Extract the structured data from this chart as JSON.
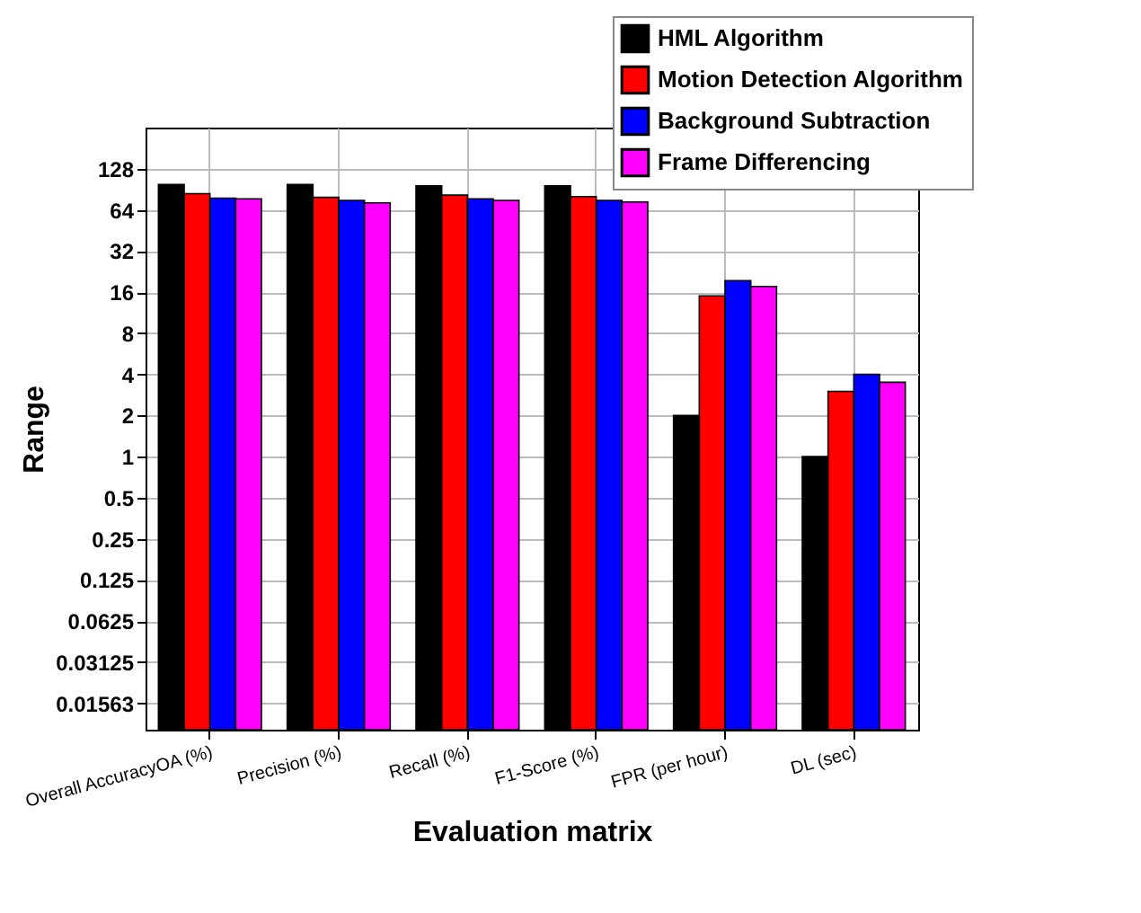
{
  "chart_data": {
    "type": "bar",
    "xlabel": "Evaluation matrix",
    "ylabel": "Range",
    "categories": [
      "Overall AccuracyOA (%)",
      "Precision (%)",
      "Recall (%)",
      "F1-Score (%)",
      "FPR (per hour)",
      "DL (sec)"
    ],
    "series": [
      {
        "name": "HML Algorithm",
        "color": "#000000",
        "values": [
          98,
          98,
          96,
          96,
          2,
          1
        ]
      },
      {
        "name": "Motion Detection Algorithm",
        "color": "#ff0000",
        "values": [
          84,
          79,
          82,
          80,
          15,
          3
        ]
      },
      {
        "name": "Background Subtraction",
        "color": "#0000ff",
        "values": [
          78,
          75,
          77,
          75,
          19.4,
          4
        ]
      },
      {
        "name": "Frame Differencing",
        "color": "#ff00ff",
        "values": [
          77,
          72,
          75,
          73,
          17.6,
          3.5
        ]
      }
    ],
    "log": true,
    "ylim": [
      0.01,
      256
    ],
    "yticks": [
      {
        "value": 0.015625,
        "label": "0.01563"
      },
      0.03125,
      0.0625,
      0.125,
      0.25,
      0.5,
      1,
      2,
      4,
      8,
      16,
      32,
      64,
      128
    ],
    "grid": true,
    "legend": "top right"
  }
}
